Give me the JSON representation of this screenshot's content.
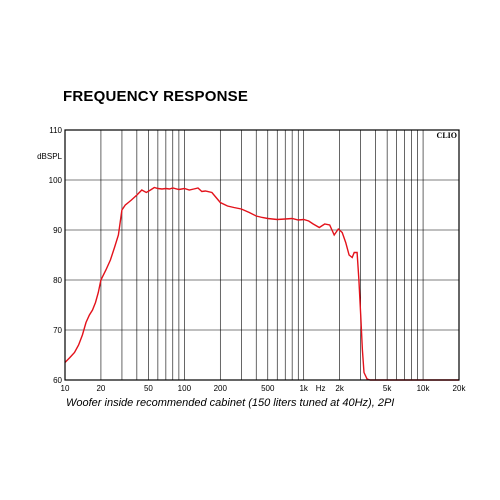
{
  "title": "FREQUENCY RESPONSE",
  "caption": "Woofer inside recommended cabinet (150 liters tuned at 40Hz), 2PI",
  "brand": "CLIO",
  "chart_data": {
    "type": "line",
    "title": "FREQUENCY RESPONSE",
    "xlabel": "Hz",
    "ylabel": "dBSPL",
    "x_scale": "log",
    "xlim": [
      10,
      20000
    ],
    "ylim": [
      60,
      110
    ],
    "grid": true,
    "line_color": "#e3121b",
    "x_ticks": [
      {
        "value": 10,
        "label": "10"
      },
      {
        "value": 20,
        "label": "20"
      },
      {
        "value": 50,
        "label": "50"
      },
      {
        "value": 100,
        "label": "100"
      },
      {
        "value": 200,
        "label": "200"
      },
      {
        "value": 500,
        "label": "500"
      },
      {
        "value": 1000,
        "label": "1k"
      },
      {
        "value": 2000,
        "label": "2k"
      },
      {
        "value": 5000,
        "label": "5k"
      },
      {
        "value": 10000,
        "label": "10k"
      },
      {
        "value": 20000,
        "label": "20k"
      }
    ],
    "y_ticks": [
      60,
      70,
      80,
      90,
      100,
      110
    ],
    "series": [
      {
        "x": [
          10,
          11,
          12,
          13,
          14,
          15,
          16,
          17,
          18,
          19,
          20,
          22,
          24,
          26,
          28,
          30,
          32,
          34,
          36,
          40,
          44,
          48,
          52,
          56,
          60,
          65,
          70,
          75,
          80,
          90,
          100,
          110,
          120,
          130,
          140,
          150,
          170,
          200,
          230,
          260,
          300,
          350,
          400,
          450,
          500,
          600,
          700,
          800,
          900,
          1000,
          1100,
          1200,
          1350,
          1500,
          1650,
          1800,
          1950,
          2100,
          2250,
          2400,
          2550,
          2650,
          2800,
          2900,
          3000,
          3100,
          3200,
          3400,
          3600,
          4000,
          5000,
          10000,
          20000
        ],
        "y": [
          63.5,
          64.5,
          65.5,
          67,
          69,
          71.5,
          73,
          74,
          75.5,
          77.5,
          80,
          82,
          84,
          86.5,
          89,
          94,
          95,
          95.5,
          96,
          97,
          98,
          97.5,
          98,
          98.5,
          98.3,
          98.2,
          98.3,
          98.2,
          98.4,
          98.1,
          98.3,
          98,
          98.2,
          98.4,
          97.7,
          97.8,
          97.5,
          95.5,
          94.8,
          94.5,
          94.2,
          93.5,
          92.8,
          92.5,
          92.3,
          92.1,
          92.2,
          92.3,
          92.0,
          92.1,
          91.8,
          91.2,
          90.5,
          91.2,
          91,
          89,
          90.2,
          89.5,
          87.5,
          85,
          84.5,
          85.5,
          85.5,
          80,
          73,
          66,
          61.5,
          60.2,
          60,
          60,
          60,
          60,
          60
        ]
      }
    ]
  }
}
